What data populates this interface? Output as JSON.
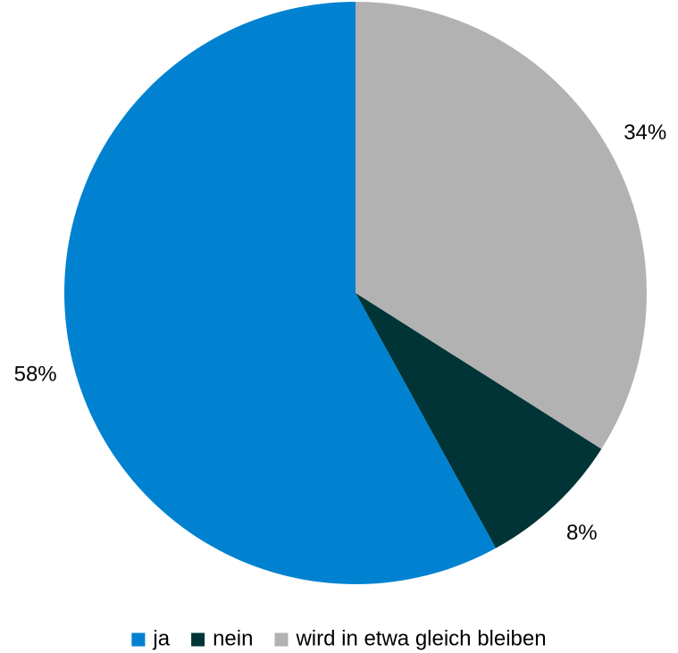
{
  "chart_data": {
    "type": "pie",
    "categories": [
      "ja",
      "nein",
      "wird in etwa gleich bleiben"
    ],
    "values": [
      58,
      8,
      34
    ],
    "value_labels": [
      "58%",
      "8%",
      "34%"
    ],
    "colors": [
      "#0082d1",
      "#003436",
      "#b2b2b2"
    ],
    "legend": "bottom"
  }
}
